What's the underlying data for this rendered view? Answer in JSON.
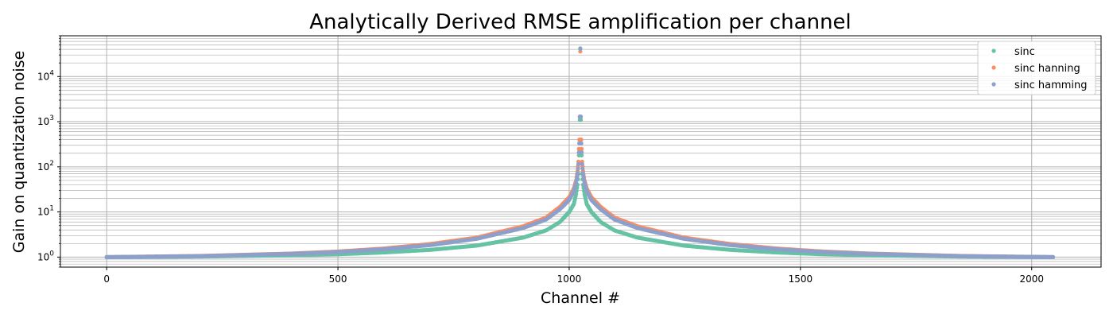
{
  "chart_data": {
    "type": "scatter",
    "title": "Analytically Derived RMSE amplification per channel",
    "xlabel": "Channel #",
    "ylabel": "Gain on quantization noise",
    "xlim": [
      -100,
      2150
    ],
    "ylim": [
      0.6,
      80000
    ],
    "yscale": "log",
    "x_ticks": [
      0,
      500,
      1000,
      1500,
      2000
    ],
    "x_tick_labels": [
      "0",
      "500",
      "1000",
      "1500",
      "2000"
    ],
    "y_ticks": [
      1,
      10,
      100,
      1000,
      10000
    ],
    "y_tick_labels": [
      "10",
      "10",
      "10",
      "10",
      "10"
    ],
    "y_tick_exponents": [
      "0",
      "1",
      "2",
      "3",
      "4"
    ],
    "grid": true,
    "grid_minor": true,
    "legend_position": "top-right",
    "channels": {
      "start": 0,
      "end": 2047,
      "center": 1024
    },
    "series": [
      {
        "name": "sinc",
        "color": "#66c2a5",
        "values_at": {
          "0": 1.0,
          "200": 1.03,
          "400": 1.1,
          "500": 1.16,
          "600": 1.27,
          "700": 1.45,
          "800": 1.8,
          "900": 2.7,
          "950": 3.9,
          "980": 6.0,
          "1000": 10.0,
          "1010": 15.0,
          "1015": 25.0,
          "1018": 40.0,
          "1020": 70.0,
          "1021": 180.0,
          "1022": 330.0,
          "1023": 1100.0,
          "1024": 41000.0
        }
      },
      {
        "name": "sinc hanning",
        "color": "#fc8d62",
        "values_at": {
          "0": 1.0,
          "200": 1.06,
          "400": 1.2,
          "500": 1.33,
          "600": 1.55,
          "700": 1.95,
          "800": 2.7,
          "900": 4.8,
          "950": 7.5,
          "980": 13.0,
          "1000": 21.0,
          "1010": 33.0,
          "1015": 50.0,
          "1018": 80.0,
          "1020": 130.0,
          "1021": 250.0,
          "1022": 400.0,
          "1023": 1250.0,
          "1024": 36000.0
        }
      },
      {
        "name": "sinc hamming",
        "color": "#8da0cb",
        "values_at": {
          "0": 1.0,
          "200": 1.05,
          "400": 1.18,
          "500": 1.3,
          "600": 1.5,
          "700": 1.85,
          "800": 2.55,
          "900": 4.4,
          "950": 6.8,
          "980": 11.5,
          "1000": 18.5,
          "1010": 29.0,
          "1015": 45.0,
          "1018": 72.0,
          "1020": 115.0,
          "1021": 210.0,
          "1022": 330.0,
          "1023": 1300.0,
          "1024": 42000.0
        }
      }
    ]
  }
}
